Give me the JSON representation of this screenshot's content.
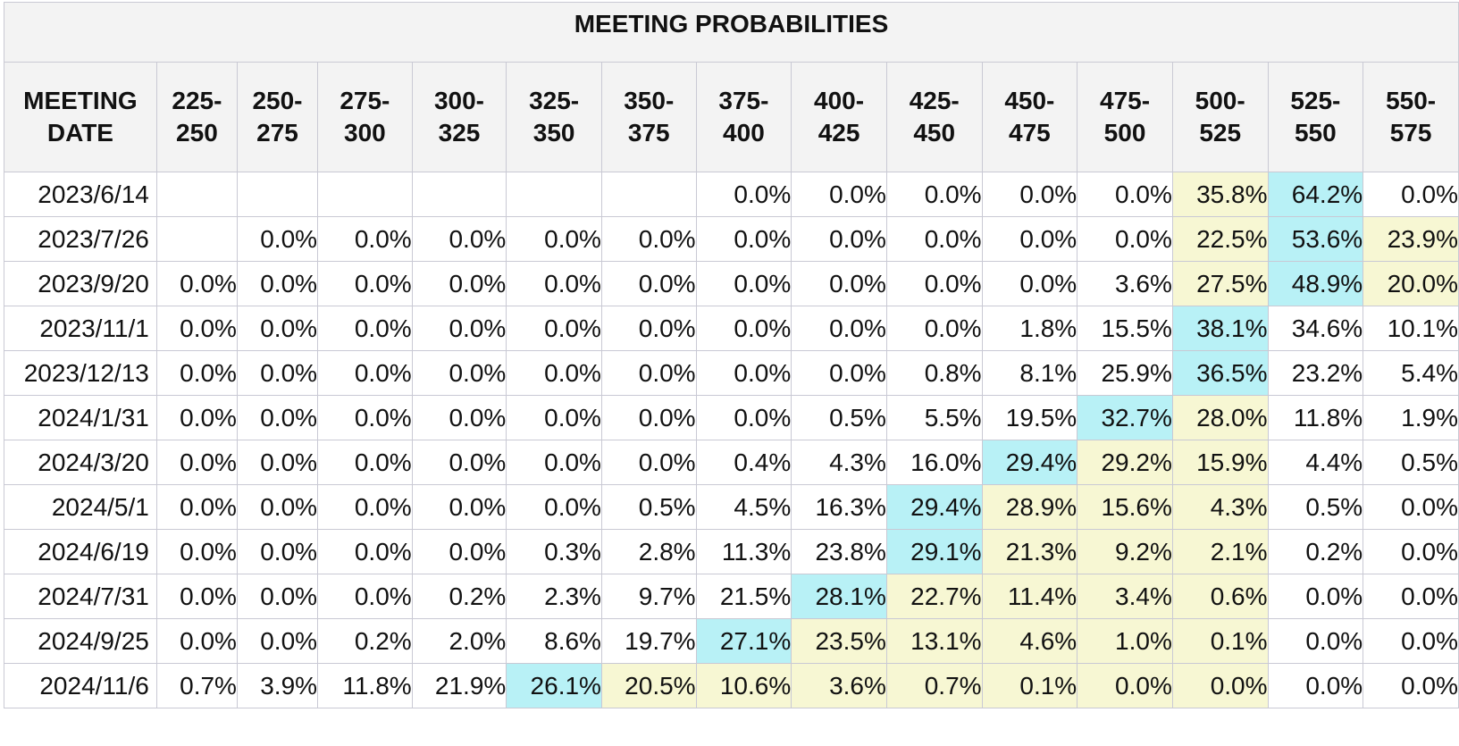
{
  "title": "MEETING PROBABILITIES",
  "header": {
    "date_label_line1": "MEETING",
    "date_label_line2": "DATE",
    "ranges": [
      {
        "line1": "225-",
        "line2": "250"
      },
      {
        "line1": "250-",
        "line2": "275"
      },
      {
        "line1": "275-",
        "line2": "300"
      },
      {
        "line1": "300-",
        "line2": "325"
      },
      {
        "line1": "325-",
        "line2": "350"
      },
      {
        "line1": "350-",
        "line2": "375"
      },
      {
        "line1": "375-",
        "line2": "400"
      },
      {
        "line1": "400-",
        "line2": "425"
      },
      {
        "line1": "425-",
        "line2": "450"
      },
      {
        "line1": "450-",
        "line2": "475"
      },
      {
        "line1": "475-",
        "line2": "500"
      },
      {
        "line1": "500-",
        "line2": "525"
      },
      {
        "line1": "525-",
        "line2": "550"
      },
      {
        "line1": "550-",
        "line2": "575"
      }
    ]
  },
  "colors": {
    "cyan": "#b8f1f6",
    "yellow": "#f7f7d3",
    "header_bg": "#f3f3f3",
    "border": "#c9c9d4"
  },
  "rows": [
    {
      "date": "2023/6/14",
      "cells": [
        {
          "v": ""
        },
        {
          "v": ""
        },
        {
          "v": ""
        },
        {
          "v": ""
        },
        {
          "v": ""
        },
        {
          "v": ""
        },
        {
          "v": "0.0%"
        },
        {
          "v": "0.0%"
        },
        {
          "v": "0.0%"
        },
        {
          "v": "0.0%"
        },
        {
          "v": "0.0%"
        },
        {
          "v": "35.8%",
          "hl": "yellow"
        },
        {
          "v": "64.2%",
          "hl": "cyan"
        },
        {
          "v": "0.0%"
        }
      ]
    },
    {
      "date": "2023/7/26",
      "cells": [
        {
          "v": ""
        },
        {
          "v": "0.0%"
        },
        {
          "v": "0.0%"
        },
        {
          "v": "0.0%"
        },
        {
          "v": "0.0%"
        },
        {
          "v": "0.0%"
        },
        {
          "v": "0.0%"
        },
        {
          "v": "0.0%"
        },
        {
          "v": "0.0%"
        },
        {
          "v": "0.0%"
        },
        {
          "v": "0.0%"
        },
        {
          "v": "22.5%",
          "hl": "yellow"
        },
        {
          "v": "53.6%",
          "hl": "cyan"
        },
        {
          "v": "23.9%",
          "hl": "yellow"
        }
      ]
    },
    {
      "date": "2023/9/20",
      "cells": [
        {
          "v": "0.0%"
        },
        {
          "v": "0.0%"
        },
        {
          "v": "0.0%"
        },
        {
          "v": "0.0%"
        },
        {
          "v": "0.0%"
        },
        {
          "v": "0.0%"
        },
        {
          "v": "0.0%"
        },
        {
          "v": "0.0%"
        },
        {
          "v": "0.0%"
        },
        {
          "v": "0.0%"
        },
        {
          "v": "3.6%"
        },
        {
          "v": "27.5%",
          "hl": "yellow"
        },
        {
          "v": "48.9%",
          "hl": "cyan"
        },
        {
          "v": "20.0%",
          "hl": "yellow"
        }
      ]
    },
    {
      "date": "2023/11/1",
      "cells": [
        {
          "v": "0.0%"
        },
        {
          "v": "0.0%"
        },
        {
          "v": "0.0%"
        },
        {
          "v": "0.0%"
        },
        {
          "v": "0.0%"
        },
        {
          "v": "0.0%"
        },
        {
          "v": "0.0%"
        },
        {
          "v": "0.0%"
        },
        {
          "v": "0.0%"
        },
        {
          "v": "1.8%"
        },
        {
          "v": "15.5%"
        },
        {
          "v": "38.1%",
          "hl": "cyan"
        },
        {
          "v": "34.6%"
        },
        {
          "v": "10.1%"
        }
      ]
    },
    {
      "date": "2023/12/13",
      "cells": [
        {
          "v": "0.0%"
        },
        {
          "v": "0.0%"
        },
        {
          "v": "0.0%"
        },
        {
          "v": "0.0%"
        },
        {
          "v": "0.0%"
        },
        {
          "v": "0.0%"
        },
        {
          "v": "0.0%"
        },
        {
          "v": "0.0%"
        },
        {
          "v": "0.8%"
        },
        {
          "v": "8.1%"
        },
        {
          "v": "25.9%"
        },
        {
          "v": "36.5%",
          "hl": "cyan"
        },
        {
          "v": "23.2%"
        },
        {
          "v": "5.4%"
        }
      ]
    },
    {
      "date": "2024/1/31",
      "cells": [
        {
          "v": "0.0%"
        },
        {
          "v": "0.0%"
        },
        {
          "v": "0.0%"
        },
        {
          "v": "0.0%"
        },
        {
          "v": "0.0%"
        },
        {
          "v": "0.0%"
        },
        {
          "v": "0.0%"
        },
        {
          "v": "0.5%"
        },
        {
          "v": "5.5%"
        },
        {
          "v": "19.5%"
        },
        {
          "v": "32.7%",
          "hl": "cyan"
        },
        {
          "v": "28.0%",
          "hl": "yellow"
        },
        {
          "v": "11.8%"
        },
        {
          "v": "1.9%"
        }
      ]
    },
    {
      "date": "2024/3/20",
      "cells": [
        {
          "v": "0.0%"
        },
        {
          "v": "0.0%"
        },
        {
          "v": "0.0%"
        },
        {
          "v": "0.0%"
        },
        {
          "v": "0.0%"
        },
        {
          "v": "0.0%"
        },
        {
          "v": "0.4%"
        },
        {
          "v": "4.3%"
        },
        {
          "v": "16.0%"
        },
        {
          "v": "29.4%",
          "hl": "cyan"
        },
        {
          "v": "29.2%",
          "hl": "yellow"
        },
        {
          "v": "15.9%",
          "hl": "yellow"
        },
        {
          "v": "4.4%"
        },
        {
          "v": "0.5%"
        }
      ]
    },
    {
      "date": "2024/5/1",
      "cells": [
        {
          "v": "0.0%"
        },
        {
          "v": "0.0%"
        },
        {
          "v": "0.0%"
        },
        {
          "v": "0.0%"
        },
        {
          "v": "0.0%"
        },
        {
          "v": "0.5%"
        },
        {
          "v": "4.5%"
        },
        {
          "v": "16.3%"
        },
        {
          "v": "29.4%",
          "hl": "cyan"
        },
        {
          "v": "28.9%",
          "hl": "yellow"
        },
        {
          "v": "15.6%",
          "hl": "yellow"
        },
        {
          "v": "4.3%",
          "hl": "yellow"
        },
        {
          "v": "0.5%"
        },
        {
          "v": "0.0%"
        }
      ]
    },
    {
      "date": "2024/6/19",
      "cells": [
        {
          "v": "0.0%"
        },
        {
          "v": "0.0%"
        },
        {
          "v": "0.0%"
        },
        {
          "v": "0.0%"
        },
        {
          "v": "0.3%"
        },
        {
          "v": "2.8%"
        },
        {
          "v": "11.3%"
        },
        {
          "v": "23.8%"
        },
        {
          "v": "29.1%",
          "hl": "cyan"
        },
        {
          "v": "21.3%",
          "hl": "yellow"
        },
        {
          "v": "9.2%",
          "hl": "yellow"
        },
        {
          "v": "2.1%",
          "hl": "yellow"
        },
        {
          "v": "0.2%"
        },
        {
          "v": "0.0%"
        }
      ]
    },
    {
      "date": "2024/7/31",
      "cells": [
        {
          "v": "0.0%"
        },
        {
          "v": "0.0%"
        },
        {
          "v": "0.0%"
        },
        {
          "v": "0.2%"
        },
        {
          "v": "2.3%"
        },
        {
          "v": "9.7%"
        },
        {
          "v": "21.5%"
        },
        {
          "v": "28.1%",
          "hl": "cyan"
        },
        {
          "v": "22.7%",
          "hl": "yellow"
        },
        {
          "v": "11.4%",
          "hl": "yellow"
        },
        {
          "v": "3.4%",
          "hl": "yellow"
        },
        {
          "v": "0.6%",
          "hl": "yellow"
        },
        {
          "v": "0.0%"
        },
        {
          "v": "0.0%"
        }
      ]
    },
    {
      "date": "2024/9/25",
      "cells": [
        {
          "v": "0.0%"
        },
        {
          "v": "0.0%"
        },
        {
          "v": "0.2%"
        },
        {
          "v": "2.0%"
        },
        {
          "v": "8.6%"
        },
        {
          "v": "19.7%"
        },
        {
          "v": "27.1%",
          "hl": "cyan"
        },
        {
          "v": "23.5%",
          "hl": "yellow"
        },
        {
          "v": "13.1%",
          "hl": "yellow"
        },
        {
          "v": "4.6%",
          "hl": "yellow"
        },
        {
          "v": "1.0%",
          "hl": "yellow"
        },
        {
          "v": "0.1%",
          "hl": "yellow"
        },
        {
          "v": "0.0%"
        },
        {
          "v": "0.0%"
        }
      ]
    },
    {
      "date": "2024/11/6",
      "cells": [
        {
          "v": "0.7%"
        },
        {
          "v": "3.9%"
        },
        {
          "v": "11.8%"
        },
        {
          "v": "21.9%"
        },
        {
          "v": "26.1%",
          "hl": "cyan"
        },
        {
          "v": "20.5%",
          "hl": "yellow"
        },
        {
          "v": "10.6%",
          "hl": "yellow"
        },
        {
          "v": "3.6%",
          "hl": "yellow"
        },
        {
          "v": "0.7%",
          "hl": "yellow"
        },
        {
          "v": "0.1%",
          "hl": "yellow"
        },
        {
          "v": "0.0%",
          "hl": "yellow"
        },
        {
          "v": "0.0%",
          "hl": "yellow"
        },
        {
          "v": "0.0%"
        },
        {
          "v": "0.0%"
        }
      ]
    }
  ]
}
